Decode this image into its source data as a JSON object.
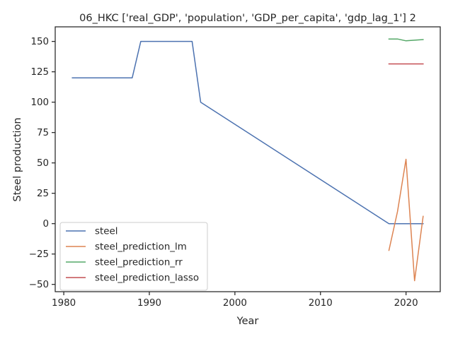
{
  "chart_data": {
    "type": "line",
    "title": "06_HKC ['real_GDP', 'population', 'GDP_per_capita', 'gdp_lag_1'] 2",
    "xlabel": "Year",
    "ylabel": "Steel production",
    "xlim": [
      1979,
      2024
    ],
    "ylim": [
      -56,
      162
    ],
    "xticks": [
      1980,
      1990,
      2000,
      2010,
      2020
    ],
    "yticks": [
      -50,
      -25,
      0,
      25,
      50,
      75,
      100,
      125,
      150
    ],
    "grid": false,
    "legend_position": "lower-left",
    "series": [
      {
        "name": "steel",
        "color": "#4c72b0",
        "points": [
          [
            1981,
            120
          ],
          [
            1988,
            120
          ],
          [
            1989,
            150
          ],
          [
            1995,
            150
          ],
          [
            1996,
            100
          ],
          [
            2018,
            0
          ],
          [
            2022,
            0
          ]
        ]
      },
      {
        "name": "steel_prediction_lm",
        "color": "#dd8452",
        "points": [
          [
            2018,
            -22
          ],
          [
            2019,
            10
          ],
          [
            2020,
            53
          ],
          [
            2021,
            -47
          ],
          [
            2022,
            6
          ]
        ]
      },
      {
        "name": "steel_prediction_rr",
        "color": "#55a868",
        "points": [
          [
            2018,
            152
          ],
          [
            2019,
            152
          ],
          [
            2020,
            150.5
          ],
          [
            2021,
            151
          ],
          [
            2022,
            151.5
          ]
        ]
      },
      {
        "name": "steel_prediction_lasso",
        "color": "#c44e52",
        "points": [
          [
            2018,
            131.5
          ],
          [
            2019,
            131.5
          ],
          [
            2020,
            131.5
          ],
          [
            2021,
            131.5
          ],
          [
            2022,
            131.5
          ]
        ]
      }
    ]
  }
}
